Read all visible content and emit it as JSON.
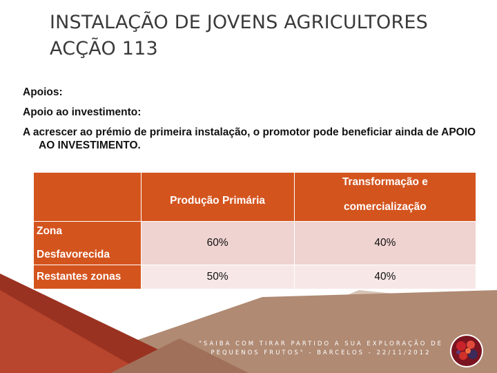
{
  "slide": {
    "title_line1": "INSTALAÇÃO DE JOVENS AGRICULTORES",
    "title_line2": "ACÇÃO 113"
  },
  "content": {
    "p1": "Apoios:",
    "p2": "Apoio ao investimento:",
    "p3": "A acrescer ao prémio de primeira instalação, o promotor pode beneficiar ainda de APOIO AO INVESTIMENTO."
  },
  "table": {
    "headers": [
      "",
      "Produção Primária",
      "Transformação e",
      "comercialização"
    ],
    "rows": [
      {
        "label_line1": "Zona",
        "label_line2": "Desfavorecida",
        "producao": "60%",
        "transformacao": "40%"
      },
      {
        "label": "Restantes zonas",
        "producao": "50%",
        "transformacao": "40%"
      }
    ]
  },
  "footer": {
    "line1": "\"SAIBA COM TIRAR PARTIDO A SUA EXPLORAÇÃO DE",
    "line2": "PEQUENOS FRUTOS\" - BARCELOS - 22/11/2012"
  },
  "colors": {
    "accent": "#d4541e",
    "row1": "#efd3d1",
    "row2": "#f7e8e7",
    "decor_dark": "#9a3222",
    "decor_tan": "#b08a73"
  },
  "icons": {
    "corner_image": "berries-photo-icon"
  }
}
